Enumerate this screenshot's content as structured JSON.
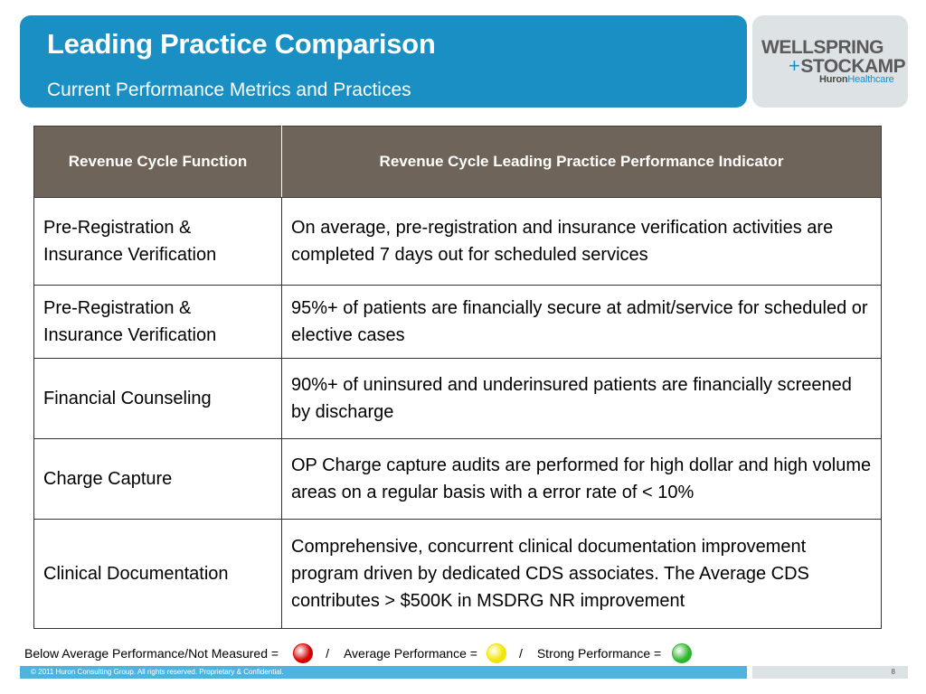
{
  "header": {
    "title": "Leading Practice Comparison",
    "subtitle": "Current Performance Metrics and Practices"
  },
  "logo": {
    "line1": "WELLSPRING",
    "plus": "+",
    "line2": "STOCKAMP",
    "brand_bold": "Huron",
    "brand_rest": "Healthcare"
  },
  "table": {
    "headers": [
      "Revenue Cycle Function",
      "Revenue Cycle Leading Practice Performance Indicator"
    ],
    "rows": [
      {
        "function": "Pre-Registration & Insurance Verification",
        "indicator": "On average, pre-registration and insurance verification activities are completed 7 days out for scheduled services"
      },
      {
        "function": "Pre-Registration & Insurance Verification",
        "indicator": "95%+ of patients are financially secure at admit/service for scheduled or elective cases"
      },
      {
        "function": "Financial Counseling",
        "indicator": "90%+ of uninsured and underinsured patients are financially screened by discharge"
      },
      {
        "function": "Charge Capture",
        "indicator": "OP Charge capture audits are performed for high dollar and high volume areas on a regular basis with a error rate of < 10%"
      },
      {
        "function": "Clinical Documentation",
        "indicator": "Comprehensive, concurrent clinical documentation improvement program driven by dedicated CDS associates. The Average CDS contributes > $500K in MSDRG NR improvement"
      }
    ]
  },
  "legend": {
    "below_label": "Below Average Performance/Not Measured =",
    "average_label": "Average Performance =",
    "strong_label": "Strong Performance =",
    "separator": "/",
    "colors": {
      "below": "#d40000",
      "average": "#f2e500",
      "strong": "#2db52d"
    }
  },
  "footer": {
    "copyright": "© 2011 Huron Consulting Group. All rights reserved. Proprietary & Confidential.",
    "page_number": "8"
  }
}
